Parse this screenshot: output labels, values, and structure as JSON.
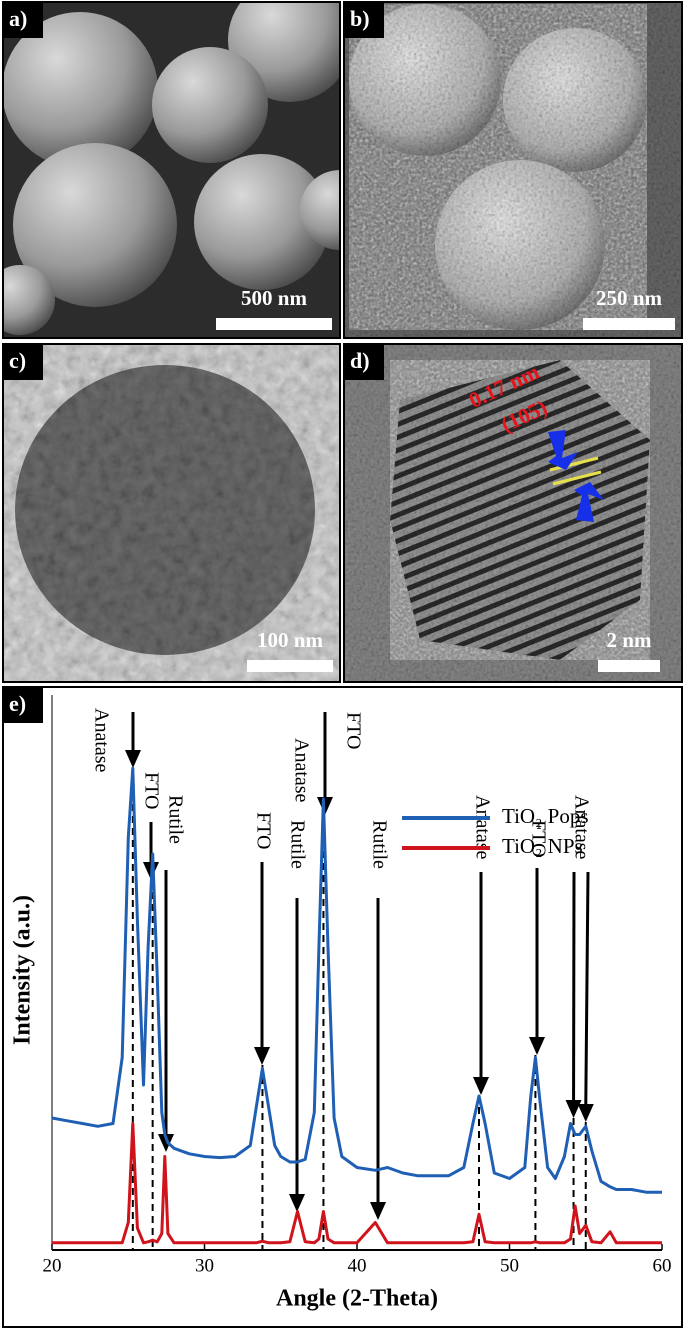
{
  "panels": [
    {
      "label": "a)",
      "scale_bar": "500 nm"
    },
    {
      "label": "b)",
      "scale_bar": "250 nm"
    },
    {
      "label": "c)",
      "scale_bar": "100 nm"
    },
    {
      "label": "d)",
      "scale_bar": "2 nm",
      "annotations": [
        "0.17 nm",
        "(105)"
      ]
    }
  ],
  "chart_data": {
    "type": "line",
    "panel_label": "e)",
    "xlabel": "Angle (2-Theta)",
    "ylabel": "Intensity (a.u.)",
    "x": [
      20,
      21,
      22,
      23,
      24,
      24.6,
      25.0,
      25.3,
      25.6,
      26.0,
      26.3,
      26.6,
      26.9,
      27.2,
      27.4,
      27.6,
      28,
      29,
      30,
      31,
      32,
      33,
      33.4,
      33.8,
      34.2,
      34.6,
      35,
      35.6,
      36.1,
      36.6,
      37.2,
      37.5,
      37.8,
      38.1,
      38.5,
      39,
      40,
      41.2,
      42,
      43,
      44,
      45,
      46,
      47,
      47.6,
      48,
      48.4,
      49,
      50,
      51,
      51.4,
      51.7,
      52.0,
      52.5,
      53,
      53.6,
      54,
      54.3,
      54.6,
      55,
      55.4,
      56,
      56.6,
      57,
      58,
      59,
      60
    ],
    "series": [
      {
        "name": "TiO₂ Pops",
        "color": "#1f5fb4",
        "values": [
          24,
          23.5,
          23,
          22.5,
          23,
          35,
          75,
          87.6,
          60,
          30,
          55,
          72,
          50,
          25,
          21,
          19.5,
          18.5,
          17.5,
          17,
          16.8,
          17,
          19,
          26,
          33,
          26,
          19,
          17,
          16,
          16,
          16.5,
          25,
          55,
          82,
          55,
          24,
          17,
          15,
          14.5,
          15,
          14,
          13.5,
          13.5,
          13.5,
          15,
          23,
          28,
          23,
          14,
          13,
          15,
          28,
          35,
          27,
          15,
          13,
          17,
          23,
          21,
          21,
          22.5,
          18,
          12.5,
          11.5,
          11,
          11,
          10.5,
          10.5
        ]
      },
      {
        "name": "TiO₂ NPs",
        "color": "#d0141c",
        "values": [
          1.3,
          1.3,
          1.3,
          1.3,
          1.3,
          1.3,
          5,
          23,
          4,
          1.3,
          1.5,
          1.8,
          1.5,
          3,
          17,
          3,
          1.3,
          1.3,
          1.3,
          1.3,
          1.3,
          1.3,
          1.3,
          1.6,
          1.3,
          1.3,
          1.3,
          1.5,
          7,
          1.5,
          1.3,
          2,
          7,
          2,
          1.3,
          1.3,
          1.3,
          5,
          1.3,
          1.3,
          1.3,
          1.3,
          1.3,
          1.3,
          1.5,
          6.5,
          1.5,
          1.3,
          1.3,
          1.3,
          1.3,
          1.5,
          1.3,
          1.3,
          1.3,
          1.3,
          2,
          8,
          3,
          4.5,
          1.5,
          1.3,
          3.3,
          1.3,
          1.3,
          1.3,
          1.3
        ]
      }
    ],
    "xlim": [
      20,
      60
    ],
    "ylim": [
      0,
      100
    ],
    "xticks": [
      20,
      30,
      40,
      50,
      60
    ],
    "legend": "upper right",
    "annotations": [
      {
        "text": "Anatase",
        "x": [
          25.3
        ]
      },
      {
        "text": "FTO",
        "x": [
          26.6
        ]
      },
      {
        "text": "Rutile",
        "x": [
          27.4
        ]
      },
      {
        "text": "FTO",
        "x": [
          33.8
        ]
      },
      {
        "text": "Rutile",
        "x": [
          36.1
        ]
      },
      {
        "text": "Anatase",
        "x": [
          37.8
        ]
      },
      {
        "text": "FTO",
        "x": [
          37.8
        ]
      },
      {
        "text": "Rutile",
        "x": [
          41.2
        ]
      },
      {
        "text": "Anatase",
        "x": [
          48
        ]
      },
      {
        "text": "FTO",
        "x": [
          51.7
        ]
      },
      {
        "text": "Anatase",
        "x": [
          54.2,
          55
        ]
      }
    ]
  }
}
